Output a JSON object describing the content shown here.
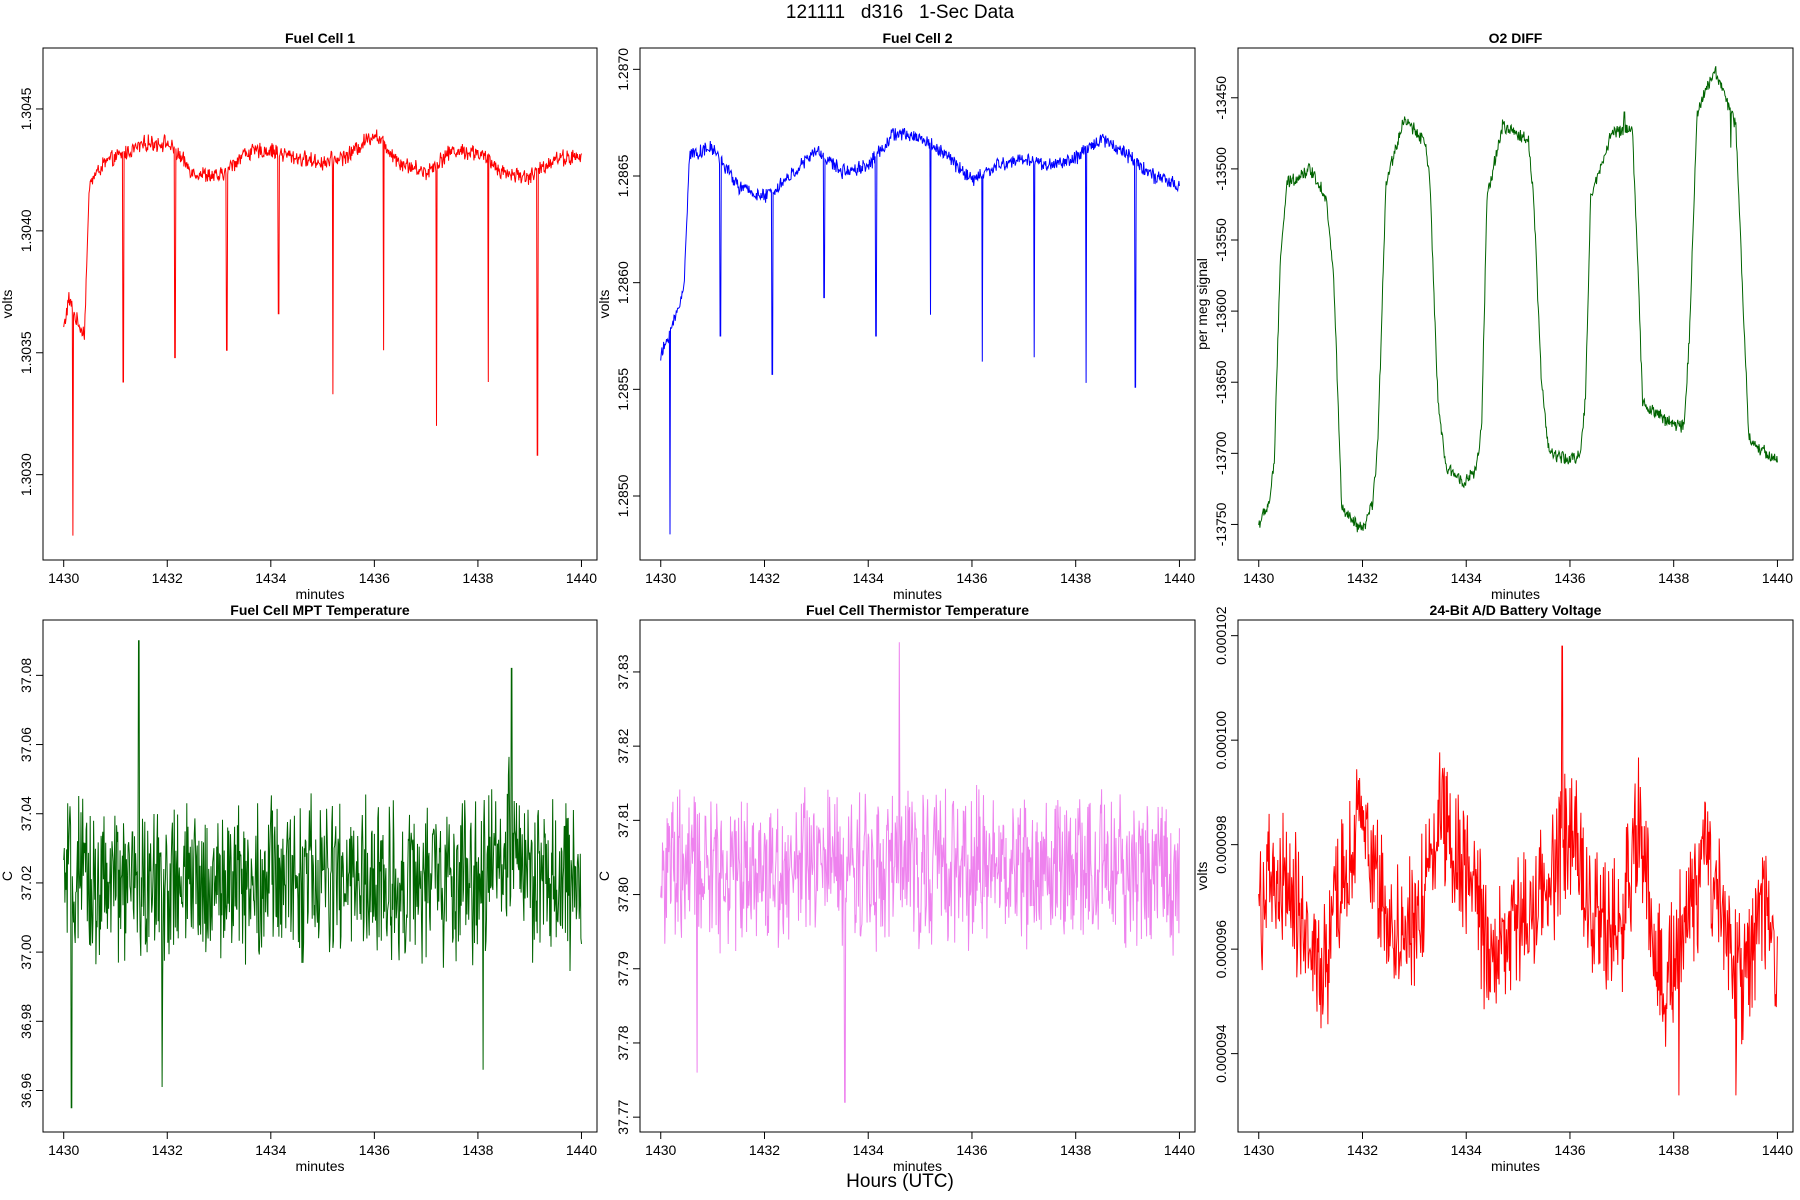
{
  "figure": {
    "title": "121111   d316   1-Sec Data",
    "footer_label": "Hours (UTC)"
  },
  "chart_data": [
    {
      "type": "line",
      "title": "Fuel Cell 1",
      "xlabel": "minutes",
      "ylabel": "volts",
      "color": "#ff0000",
      "xlim": [
        1429.6,
        1440.3
      ],
      "ylim": [
        1.30265,
        1.30475
      ],
      "xticks": [
        1430,
        1432,
        1434,
        1436,
        1438,
        1440
      ],
      "yticks": [
        1.303,
        1.3035,
        1.304,
        1.3045
      ],
      "ytick_labels": [
        "1.3030",
        "1.3035",
        "1.3040",
        "1.3045"
      ],
      "keypoints": [
        [
          1430.0,
          1.3036
        ],
        [
          1430.1,
          1.30372
        ],
        [
          1430.25,
          1.30363
        ],
        [
          1430.4,
          1.30358
        ],
        [
          1430.5,
          1.3042
        ],
        [
          1430.8,
          1.30428
        ],
        [
          1431.2,
          1.30432
        ],
        [
          1431.6,
          1.30436
        ],
        [
          1432.0,
          1.30436
        ],
        [
          1432.5,
          1.30424
        ],
        [
          1433.0,
          1.30422
        ],
        [
          1433.5,
          1.30432
        ],
        [
          1434.0,
          1.30433
        ],
        [
          1434.5,
          1.3043
        ],
        [
          1435.0,
          1.30428
        ],
        [
          1435.5,
          1.30431
        ],
        [
          1436.0,
          1.3044
        ],
        [
          1436.5,
          1.30428
        ],
        [
          1437.0,
          1.30424
        ],
        [
          1437.5,
          1.30433
        ],
        [
          1438.0,
          1.30432
        ],
        [
          1438.5,
          1.30424
        ],
        [
          1439.0,
          1.30422
        ],
        [
          1439.5,
          1.3043
        ],
        [
          1440.0,
          1.3043
        ]
      ],
      "noise": 2.8e-05,
      "spikes": [
        [
          1430.18,
          1.30275
        ],
        [
          1431.15,
          1.30338
        ],
        [
          1432.15,
          1.30348
        ],
        [
          1433.15,
          1.30351
        ],
        [
          1434.15,
          1.30366
        ],
        [
          1435.2,
          1.30333
        ],
        [
          1436.18,
          1.30351
        ],
        [
          1437.2,
          1.3032
        ],
        [
          1438.2,
          1.30338
        ],
        [
          1439.15,
          1.30308
        ]
      ]
    },
    {
      "type": "line",
      "title": "Fuel Cell 2",
      "xlabel": "minutes",
      "ylabel": "volts",
      "color": "#0000ff",
      "xlim": [
        1429.6,
        1440.3
      ],
      "ylim": [
        1.2847,
        1.2871
      ],
      "xticks": [
        1430,
        1432,
        1434,
        1436,
        1438,
        1440
      ],
      "yticks": [
        1.285,
        1.2855,
        1.286,
        1.2865,
        1.287
      ],
      "ytick_labels": [
        "1.2850",
        "1.2855",
        "1.2860",
        "1.2865",
        "1.2870"
      ],
      "keypoints": [
        [
          1430.0,
          1.28565
        ],
        [
          1430.15,
          1.28575
        ],
        [
          1430.3,
          1.28585
        ],
        [
          1430.45,
          1.28598
        ],
        [
          1430.55,
          1.2866
        ],
        [
          1431.0,
          1.28663
        ],
        [
          1431.5,
          1.28645
        ],
        [
          1432.0,
          1.2864
        ],
        [
          1432.5,
          1.2865
        ],
        [
          1433.0,
          1.28662
        ],
        [
          1433.5,
          1.28652
        ],
        [
          1434.0,
          1.28655
        ],
        [
          1434.5,
          1.2867
        ],
        [
          1435.0,
          1.28668
        ],
        [
          1435.5,
          1.2866
        ],
        [
          1436.0,
          1.28648
        ],
        [
          1436.5,
          1.28655
        ],
        [
          1437.0,
          1.28658
        ],
        [
          1437.5,
          1.28655
        ],
        [
          1438.0,
          1.28658
        ],
        [
          1438.5,
          1.28668
        ],
        [
          1439.0,
          1.2866
        ],
        [
          1439.5,
          1.2865
        ],
        [
          1440.0,
          1.28645
        ]
      ],
      "noise": 2.8e-05,
      "spikes": [
        [
          1430.18,
          1.28482
        ],
        [
          1431.15,
          1.28575
        ],
        [
          1432.15,
          1.28557
        ],
        [
          1433.15,
          1.28593
        ],
        [
          1434.15,
          1.28575
        ],
        [
          1435.2,
          1.28585
        ],
        [
          1436.2,
          1.28563
        ],
        [
          1437.2,
          1.28565
        ],
        [
          1438.2,
          1.28553
        ],
        [
          1439.15,
          1.28551
        ]
      ]
    },
    {
      "type": "line",
      "title": "O2 DIFF",
      "xlabel": "minutes",
      "ylabel": "per meg signal",
      "color": "#006400",
      "xlim": [
        1429.6,
        1440.3
      ],
      "ylim": [
        -13775,
        -13415
      ],
      "xticks": [
        1430,
        1432,
        1434,
        1436,
        1438,
        1440
      ],
      "yticks": [
        -13750,
        -13700,
        -13650,
        -13600,
        -13550,
        -13500,
        -13450
      ],
      "ytick_labels": [
        "-13750",
        "-13700",
        "-13650",
        "-13600",
        "-13550",
        "-13500",
        "-13450"
      ],
      "keypoints": [
        [
          1430.0,
          -13750
        ],
        [
          1430.2,
          -13735
        ],
        [
          1430.3,
          -13705
        ],
        [
          1430.42,
          -13560
        ],
        [
          1430.55,
          -13510
        ],
        [
          1431.0,
          -13500
        ],
        [
          1431.3,
          -13520
        ],
        [
          1431.45,
          -13580
        ],
        [
          1431.6,
          -13740
        ],
        [
          1432.0,
          -13755
        ],
        [
          1432.2,
          -13735
        ],
        [
          1432.3,
          -13690
        ],
        [
          1432.45,
          -13510
        ],
        [
          1432.8,
          -13465
        ],
        [
          1433.2,
          -13480
        ],
        [
          1433.3,
          -13510
        ],
        [
          1433.45,
          -13660
        ],
        [
          1433.6,
          -13710
        ],
        [
          1434.0,
          -13720
        ],
        [
          1434.2,
          -13710
        ],
        [
          1434.3,
          -13680
        ],
        [
          1434.4,
          -13520
        ],
        [
          1434.7,
          -13470
        ],
        [
          1435.2,
          -13480
        ],
        [
          1435.3,
          -13520
        ],
        [
          1435.45,
          -13650
        ],
        [
          1435.6,
          -13700
        ],
        [
          1436.0,
          -13705
        ],
        [
          1436.2,
          -13700
        ],
        [
          1436.3,
          -13660
        ],
        [
          1436.4,
          -13520
        ],
        [
          1436.8,
          -13475
        ],
        [
          1437.2,
          -13470
        ],
        [
          1437.3,
          -13560
        ],
        [
          1437.4,
          -13665
        ],
        [
          1438.0,
          -13680
        ],
        [
          1438.2,
          -13680
        ],
        [
          1438.3,
          -13620
        ],
        [
          1438.45,
          -13460
        ],
        [
          1438.8,
          -13430
        ],
        [
          1439.2,
          -13470
        ],
        [
          1439.3,
          -13560
        ],
        [
          1439.45,
          -13690
        ],
        [
          1439.6,
          -13695
        ],
        [
          1440.0,
          -13705
        ]
      ],
      "noise": 4,
      "spikes": [
        [
          1437.05,
          -13460
        ],
        [
          1439.1,
          -13485
        ]
      ]
    },
    {
      "type": "line",
      "title": "Fuel Cell MPT Temperature",
      "xlabel": "minutes",
      "ylabel": "C",
      "color": "#006400",
      "xlim": [
        1429.6,
        1440.3
      ],
      "ylim": [
        36.948,
        37.096
      ],
      "xticks": [
        1430,
        1432,
        1434,
        1436,
        1438,
        1440
      ],
      "yticks": [
        36.96,
        36.98,
        37.0,
        37.02,
        37.04,
        37.06,
        37.08
      ],
      "ytick_labels": [
        "36.96",
        "36.98",
        "37.00",
        "37.02",
        "37.04",
        "37.06",
        "37.08"
      ],
      "keypoints": [
        [
          1430.0,
          37.02
        ],
        [
          1432.0,
          37.018
        ],
        [
          1434.0,
          37.022
        ],
        [
          1436.0,
          37.02
        ],
        [
          1438.0,
          37.02
        ],
        [
          1438.7,
          37.035
        ],
        [
          1439.0,
          37.02
        ],
        [
          1440.0,
          37.018
        ]
      ],
      "noise": 0.019,
      "spikes": [
        [
          1430.15,
          36.955
        ],
        [
          1431.45,
          37.09
        ],
        [
          1431.9,
          36.961
        ],
        [
          1438.1,
          36.966
        ],
        [
          1438.65,
          37.082
        ]
      ]
    },
    {
      "type": "line",
      "title": "Fuel Cell Thermistor Temperature",
      "xlabel": "minutes",
      "ylabel": "C",
      "color": "#ee82ee",
      "xlim": [
        1429.6,
        1440.3
      ],
      "ylim": [
        37.768,
        37.837
      ],
      "xticks": [
        1430,
        1432,
        1434,
        1436,
        1438,
        1440
      ],
      "yticks": [
        37.77,
        37.78,
        37.79,
        37.8,
        37.81,
        37.82,
        37.83
      ],
      "ytick_labels": [
        "37.77",
        "37.78",
        "37.79",
        "37.80",
        "37.81",
        "37.82",
        "37.83"
      ],
      "keypoints": [
        [
          1430.0,
          37.803
        ],
        [
          1435.0,
          37.804
        ],
        [
          1440.0,
          37.803
        ]
      ],
      "noise": 0.0085,
      "spikes": [
        [
          1433.55,
          37.772
        ],
        [
          1434.6,
          37.834
        ],
        [
          1430.7,
          37.776
        ]
      ]
    },
    {
      "type": "line",
      "title": "24-Bit A/D Battery Voltage",
      "xlabel": "minutes",
      "ylabel": "volts",
      "color": "#ff0000",
      "xlim": [
        1429.6,
        1440.3
      ],
      "ylim": [
        9.25e-05,
        0.0001023
      ],
      "xticks": [
        1430,
        1432,
        1434,
        1436,
        1438,
        1440
      ],
      "yticks": [
        9.4e-05,
        9.6e-05,
        9.8e-05,
        0.0001,
        0.000102
      ],
      "ytick_labels": [
        "0.000094",
        "0.000096",
        "0.000098",
        "0.000100",
        "0.000102"
      ],
      "keypoints": [
        [
          1430.0,
          9.7e-05
        ],
        [
          1430.5,
          9.72e-05
        ],
        [
          1430.9,
          9.65e-05
        ],
        [
          1431.2,
          9.52e-05
        ],
        [
          1431.5,
          9.68e-05
        ],
        [
          1432.0,
          9.85e-05
        ],
        [
          1432.5,
          9.65e-05
        ],
        [
          1433.0,
          9.62e-05
        ],
        [
          1433.5,
          9.88e-05
        ],
        [
          1434.0,
          9.75e-05
        ],
        [
          1434.5,
          9.58e-05
        ],
        [
          1435.0,
          9.65e-05
        ],
        [
          1435.5,
          9.72e-05
        ],
        [
          1436.0,
          9.82e-05
        ],
        [
          1436.5,
          9.68e-05
        ],
        [
          1437.0,
          9.62e-05
        ],
        [
          1437.3,
          9.85e-05
        ],
        [
          1437.8,
          9.52e-05
        ],
        [
          1438.2,
          9.65e-05
        ],
        [
          1438.6,
          9.78e-05
        ],
        [
          1439.0,
          9.62e-05
        ],
        [
          1439.3,
          9.52e-05
        ],
        [
          1439.7,
          9.68e-05
        ],
        [
          1440.0,
          9.6e-05
        ]
      ],
      "noise": 1.1e-06,
      "spikes": [
        [
          1435.85,
          0.0001018
        ],
        [
          1438.1,
          9.32e-05
        ],
        [
          1439.2,
          9.32e-05
        ]
      ]
    }
  ]
}
